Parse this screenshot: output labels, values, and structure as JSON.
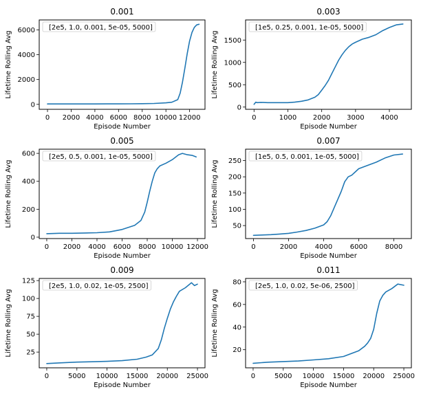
{
  "chart_data": [
    {
      "type": "line",
      "title": "0.001",
      "xlabel": "Episode Number",
      "ylabel": "Lifetime Rolling Avg",
      "xlim": [
        -700,
        13300
      ],
      "ylim": [
        -400,
        6800
      ],
      "xticks": [
        0,
        2000,
        4000,
        6000,
        8000,
        10000,
        12000
      ],
      "yticks": [
        0,
        2000,
        4000,
        6000
      ],
      "legend": "upper left",
      "color": "#1f77b4",
      "series": [
        {
          "name": "[2e5, 1.0, 0.001, 5e-05, 5000]",
          "x": [
            0,
            1000,
            2000,
            3000,
            4000,
            5000,
            6000,
            7000,
            8000,
            9000,
            10000,
            10500,
            11000,
            11200,
            11400,
            11600,
            11800,
            12000,
            12200,
            12400,
            12600,
            12800
          ],
          "y": [
            30,
            30,
            30,
            30,
            30,
            35,
            40,
            45,
            55,
            70,
            120,
            170,
            380,
            900,
            1800,
            2900,
            4100,
            5100,
            5800,
            6200,
            6400,
            6450
          ]
        }
      ]
    },
    {
      "type": "line",
      "title": "0.003",
      "xlabel": "Episode Number",
      "ylabel": "Lifetime Rolling Avg",
      "xlim": [
        -250,
        4650
      ],
      "ylim": [
        -50,
        1950
      ],
      "xticks": [
        0,
        1000,
        2000,
        3000,
        4000
      ],
      "yticks": [
        0,
        500,
        1000,
        1500
      ],
      "legend": "upper left",
      "color": "#1f77b4",
      "series": [
        {
          "name": "[1e5, 0.25, 0.001, 1e-05, 5000]",
          "x": [
            0,
            50,
            100,
            200,
            400,
            600,
            800,
            1000,
            1200,
            1400,
            1600,
            1800,
            1900,
            2000,
            2100,
            2200,
            2300,
            2400,
            2500,
            2600,
            2700,
            2800,
            2900,
            3000,
            3200,
            3400,
            3600,
            3800,
            4000,
            4200,
            4400
          ],
          "y": [
            60,
            110,
            100,
            105,
            100,
            100,
            100,
            100,
            110,
            130,
            160,
            220,
            280,
            380,
            480,
            600,
            750,
            900,
            1050,
            1170,
            1270,
            1350,
            1410,
            1450,
            1520,
            1560,
            1620,
            1710,
            1780,
            1840,
            1860
          ]
        }
      ]
    },
    {
      "type": "line",
      "title": "0.005",
      "xlabel": "Episode Number",
      "ylabel": "Lifetime Rolling Avg",
      "xlim": [
        -600,
        12600
      ],
      "ylim": [
        -10,
        630
      ],
      "xticks": [
        0,
        2000,
        4000,
        6000,
        8000,
        10000,
        12000
      ],
      "yticks": [
        0,
        200,
        400,
        600
      ],
      "legend": "upper left",
      "color": "#1f77b4",
      "series": [
        {
          "name": "[2e5, 0.5, 0.001, 1e-05, 5000]",
          "x": [
            0,
            1000,
            2000,
            3000,
            4000,
            5000,
            6000,
            7000,
            7500,
            7800,
            8000,
            8200,
            8400,
            8600,
            8800,
            9000,
            9500,
            10000,
            10500,
            10800,
            11200,
            11600,
            11900
          ],
          "y": [
            25,
            28,
            28,
            30,
            32,
            38,
            55,
            85,
            120,
            180,
            250,
            330,
            400,
            460,
            490,
            510,
            530,
            555,
            590,
            600,
            590,
            585,
            575
          ]
        }
      ]
    },
    {
      "type": "line",
      "title": "0.007",
      "xlabel": "Episode Number",
      "ylabel": "Lifetime Rolling Avg",
      "xlim": [
        -450,
        9000
      ],
      "ylim": [
        10,
        285
      ],
      "xticks": [
        0,
        2000,
        4000,
        6000,
        8000
      ],
      "yticks": [
        50,
        100,
        150,
        200,
        250
      ],
      "legend": "upper left",
      "color": "#1f77b4",
      "series": [
        {
          "name": "[1e5, 0.5, 0.001, 1e-05, 5000]",
          "x": [
            0,
            500,
            1000,
            1500,
            2000,
            2500,
            3000,
            3500,
            4000,
            4200,
            4400,
            4600,
            4800,
            5000,
            5200,
            5400,
            5600,
            5800,
            6000,
            6500,
            7000,
            7500,
            8000,
            8500
          ],
          "y": [
            20,
            21,
            22,
            24,
            26,
            30,
            35,
            42,
            52,
            62,
            80,
            105,
            130,
            155,
            185,
            200,
            205,
            215,
            225,
            235,
            245,
            258,
            267,
            270
          ]
        }
      ]
    },
    {
      "type": "line",
      "title": "0.009",
      "xlabel": "Episode Number",
      "ylabel": "Lifetime Rolling Avg",
      "xlim": [
        -1250,
        26250
      ],
      "ylim": [
        3,
        128
      ],
      "xticks": [
        0,
        5000,
        10000,
        15000,
        20000,
        25000
      ],
      "yticks": [
        25,
        50,
        75,
        100,
        125
      ],
      "legend": "upper left",
      "color": "#1f77b4",
      "series": [
        {
          "name": "[2e5, 1.0, 0.02, 1e-05, 2500]",
          "x": [
            0,
            2500,
            5000,
            7500,
            10000,
            12500,
            15000,
            16500,
            17500,
            18500,
            19000,
            19500,
            20000,
            20500,
            21000,
            21500,
            22000,
            23000,
            24000,
            24500,
            25000
          ],
          "y": [
            9,
            10,
            11,
            11.5,
            12,
            13,
            15,
            18,
            21,
            30,
            42,
            58,
            72,
            85,
            95,
            103,
            110,
            115,
            122,
            118,
            120
          ]
        }
      ]
    },
    {
      "type": "line",
      "title": "0.011",
      "xlabel": "Episode Number",
      "ylabel": "Lifetime Rolling Avg",
      "xlim": [
        -1250,
        26250
      ],
      "ylim": [
        4,
        83
      ],
      "xticks": [
        0,
        5000,
        10000,
        15000,
        20000,
        25000
      ],
      "yticks": [
        20,
        40,
        60,
        80
      ],
      "legend": "upper left",
      "color": "#1f77b4",
      "series": [
        {
          "name": "[2e5, 1.0, 0.02, 5e-06, 2500]",
          "x": [
            0,
            2500,
            5000,
            7500,
            10000,
            12500,
            15000,
            17500,
            18500,
            19000,
            19500,
            20000,
            20500,
            21000,
            21500,
            22000,
            23000,
            24000,
            25000
          ],
          "y": [
            8,
            9,
            9.5,
            10,
            11,
            12,
            14,
            19,
            23,
            26,
            30,
            38,
            52,
            63,
            68,
            71,
            74,
            78,
            77
          ]
        }
      ]
    }
  ]
}
